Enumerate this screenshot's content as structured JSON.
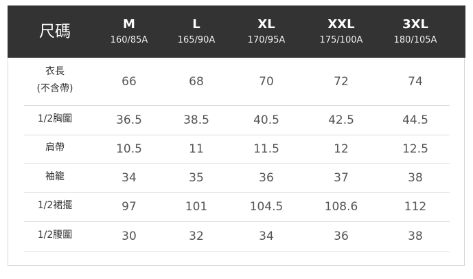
{
  "header": {
    "title": "尺碼",
    "columns": [
      {
        "size": "M",
        "measure": "160/85A"
      },
      {
        "size": "L",
        "measure": "165/90A"
      },
      {
        "size": "XL",
        "measure": "170/95A"
      },
      {
        "size": "XXL",
        "measure": "175/100A"
      },
      {
        "size": "3XL",
        "measure": "180/105A"
      }
    ]
  },
  "table": {
    "rows": [
      {
        "label": "衣長",
        "note": "(不含帶)",
        "values": [
          66,
          68,
          70,
          72,
          74
        ]
      },
      {
        "label": "1/2胸圍",
        "values": [
          36.5,
          38.5,
          40.5,
          42.5,
          44.5
        ]
      },
      {
        "label": "肩帶",
        "values": [
          10.5,
          11,
          11.5,
          12,
          12.5
        ]
      },
      {
        "label": "袖籠",
        "values": [
          34,
          35,
          36,
          37,
          38
        ]
      },
      {
        "label": "1/2裙擺",
        "values": [
          97,
          101,
          104.5,
          108.6,
          112
        ]
      },
      {
        "label": "1/2腰圍",
        "values": [
          30,
          32,
          34,
          36,
          38
        ]
      }
    ]
  }
}
